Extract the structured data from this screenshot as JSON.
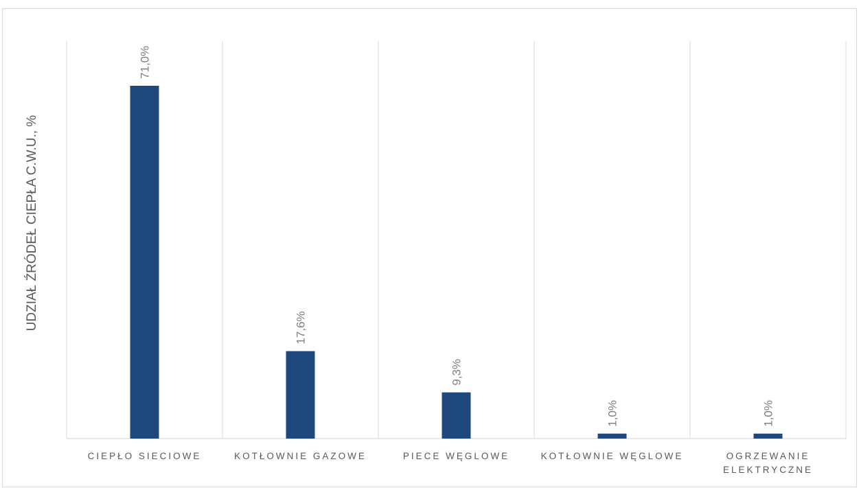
{
  "chart_data": {
    "type": "bar",
    "title": "",
    "xlabel": "",
    "ylabel": "UDZIAŁ ŹRÓDEŁ CIEPŁA C.W.U., %",
    "categories": [
      [
        "CIEPŁO SIECIOWE"
      ],
      [
        "KOTŁOWNIE GAZOWE"
      ],
      [
        "PIECE WĘGLOWE"
      ],
      [
        "KOTŁOWNIE WĘGLOWE"
      ],
      [
        "OGRZEWANIE",
        "ELEKTRYCZNE"
      ]
    ],
    "values": [
      71.0,
      17.6,
      9.3,
      1.0,
      1.0
    ],
    "data_labels": [
      "71,0%",
      "17,6%",
      "9,3%",
      "1,0%",
      "1,0%"
    ],
    "ylim": [
      0,
      80
    ],
    "grid": "vertical category separators",
    "legend": "none",
    "bar_color": "#1f497d"
  }
}
